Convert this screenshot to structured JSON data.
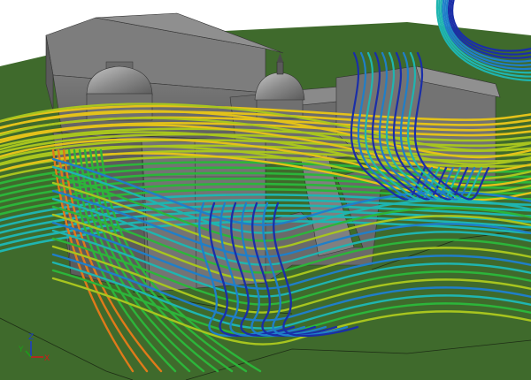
{
  "scene": {
    "colors": {
      "background": "#ffffff",
      "ground": "#3f6a2c",
      "ground_shadow": "#35592a",
      "building_light": "#8c8c8c",
      "building_mid": "#6f6f6f",
      "building_dark": "#4f4f4f",
      "dome": "#9a9a9a",
      "streamline_palette": [
        "#1a2ea8",
        "#1f7fc9",
        "#1fb5b0",
        "#2cb53a",
        "#a8c51f",
        "#e4c21a",
        "#e07a1a",
        "#c81e1e"
      ]
    },
    "triad": {
      "x": "X",
      "y": "Y",
      "z": "Z",
      "x_color": "#d01a1a",
      "y_color": "#1aa01a",
      "z_color": "#1a3ad0"
    }
  }
}
